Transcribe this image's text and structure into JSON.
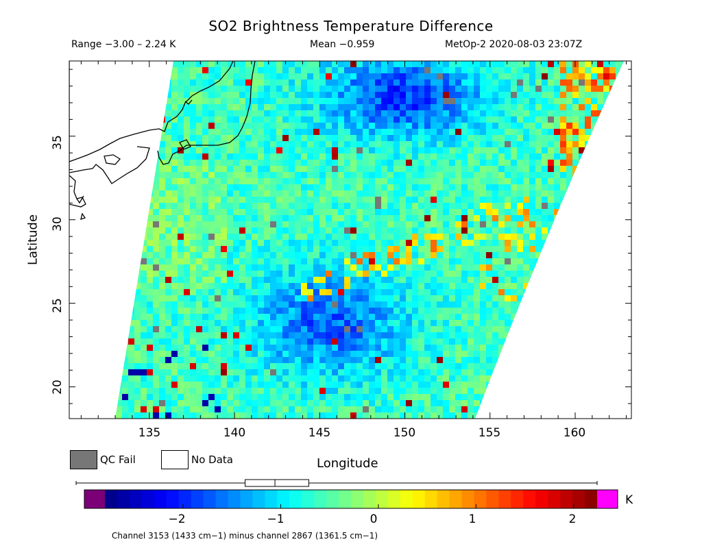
{
  "header": {
    "title": "SO2 Brightness Temperature Difference",
    "range": "Range −3.00 – 2.24 K",
    "mean": "Mean −0.959",
    "satellite_time": "MetOp-2 2020-08-03 23:07Z"
  },
  "axes": {
    "xlabel": "Longitude",
    "ylabel": "Latitude",
    "x_ticks": [
      "135",
      "140",
      "145",
      "150",
      "155",
      "160"
    ],
    "y_ticks": [
      "20",
      "25",
      "30",
      "35"
    ],
    "x_range": [
      130.3,
      163.3
    ],
    "y_range": [
      18.1,
      39.5
    ]
  },
  "legend": {
    "qc_fail": "QC Fail",
    "no_data": "No Data",
    "qc_color": "#777777"
  },
  "colorbar": {
    "ticks": [
      "−2",
      "−1",
      "0",
      "1",
      "2"
    ],
    "tick_values": [
      -2,
      -1,
      0,
      1,
      2
    ],
    "range": [
      -2.8,
      2.24
    ],
    "unit": "K",
    "low_color": "#7b0078",
    "high_color": "#ff00ff",
    "box_whisker": {
      "min": -3.0,
      "q1": -1.3,
      "median": -1.0,
      "q3": -0.66,
      "max": 2.24
    }
  },
  "footnote": "Channel 3153 (1433 cm−1) minus channel 2867 (1361.5 cm−1)"
}
